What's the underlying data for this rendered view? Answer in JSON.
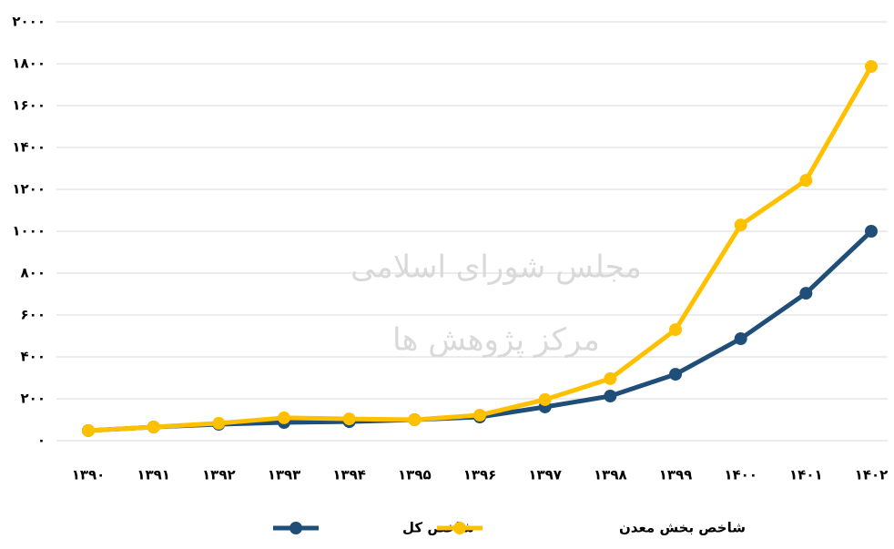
{
  "chart_data": {
    "type": "line",
    "categories": [
      "۱۳۹۰",
      "۱۳۹۱",
      "۱۳۹۲",
      "۱۳۹۳",
      "۱۳۹۴",
      "۱۳۹۵",
      "۱۳۹۶",
      "۱۳۹۷",
      "۱۳۹۸",
      "۱۳۹۹",
      "۱۴۰۰",
      "۱۴۰۱",
      "۱۴۰۲"
    ],
    "series": [
      {
        "name": "شاخص کل",
        "color": "#1f4e79",
        "values": [
          48,
          65,
          78,
          87,
          91,
          100,
          113,
          161,
          213,
          317,
          487,
          704,
          1000
        ]
      },
      {
        "name": "شاخص بخش معدن",
        "color": "#ffc000",
        "values": [
          48,
          65,
          83,
          109,
          104,
          100,
          122,
          196,
          296,
          530,
          1030,
          1243,
          1787
        ]
      }
    ],
    "ylim": [
      0,
      2000
    ],
    "yticks": [
      {
        "value": 0,
        "label": "۰"
      },
      {
        "value": 200,
        "label": "۲۰۰"
      },
      {
        "value": 400,
        "label": "۴۰۰"
      },
      {
        "value": 600,
        "label": "۶۰۰"
      },
      {
        "value": 800,
        "label": "۸۰۰"
      },
      {
        "value": 1000,
        "label": "۱۰۰۰"
      },
      {
        "value": 1200,
        "label": "۱۲۰۰"
      },
      {
        "value": 1400,
        "label": "۱۴۰۰"
      },
      {
        "value": 1600,
        "label": "۱۶۰۰"
      },
      {
        "value": 1800,
        "label": "۱۸۰۰"
      },
      {
        "value": 2000,
        "label": "۲۰۰۰"
      }
    ],
    "grid": true,
    "annotations": [
      "مجلس شورای اسلامی",
      "مرکز پژوهش ها"
    ]
  }
}
